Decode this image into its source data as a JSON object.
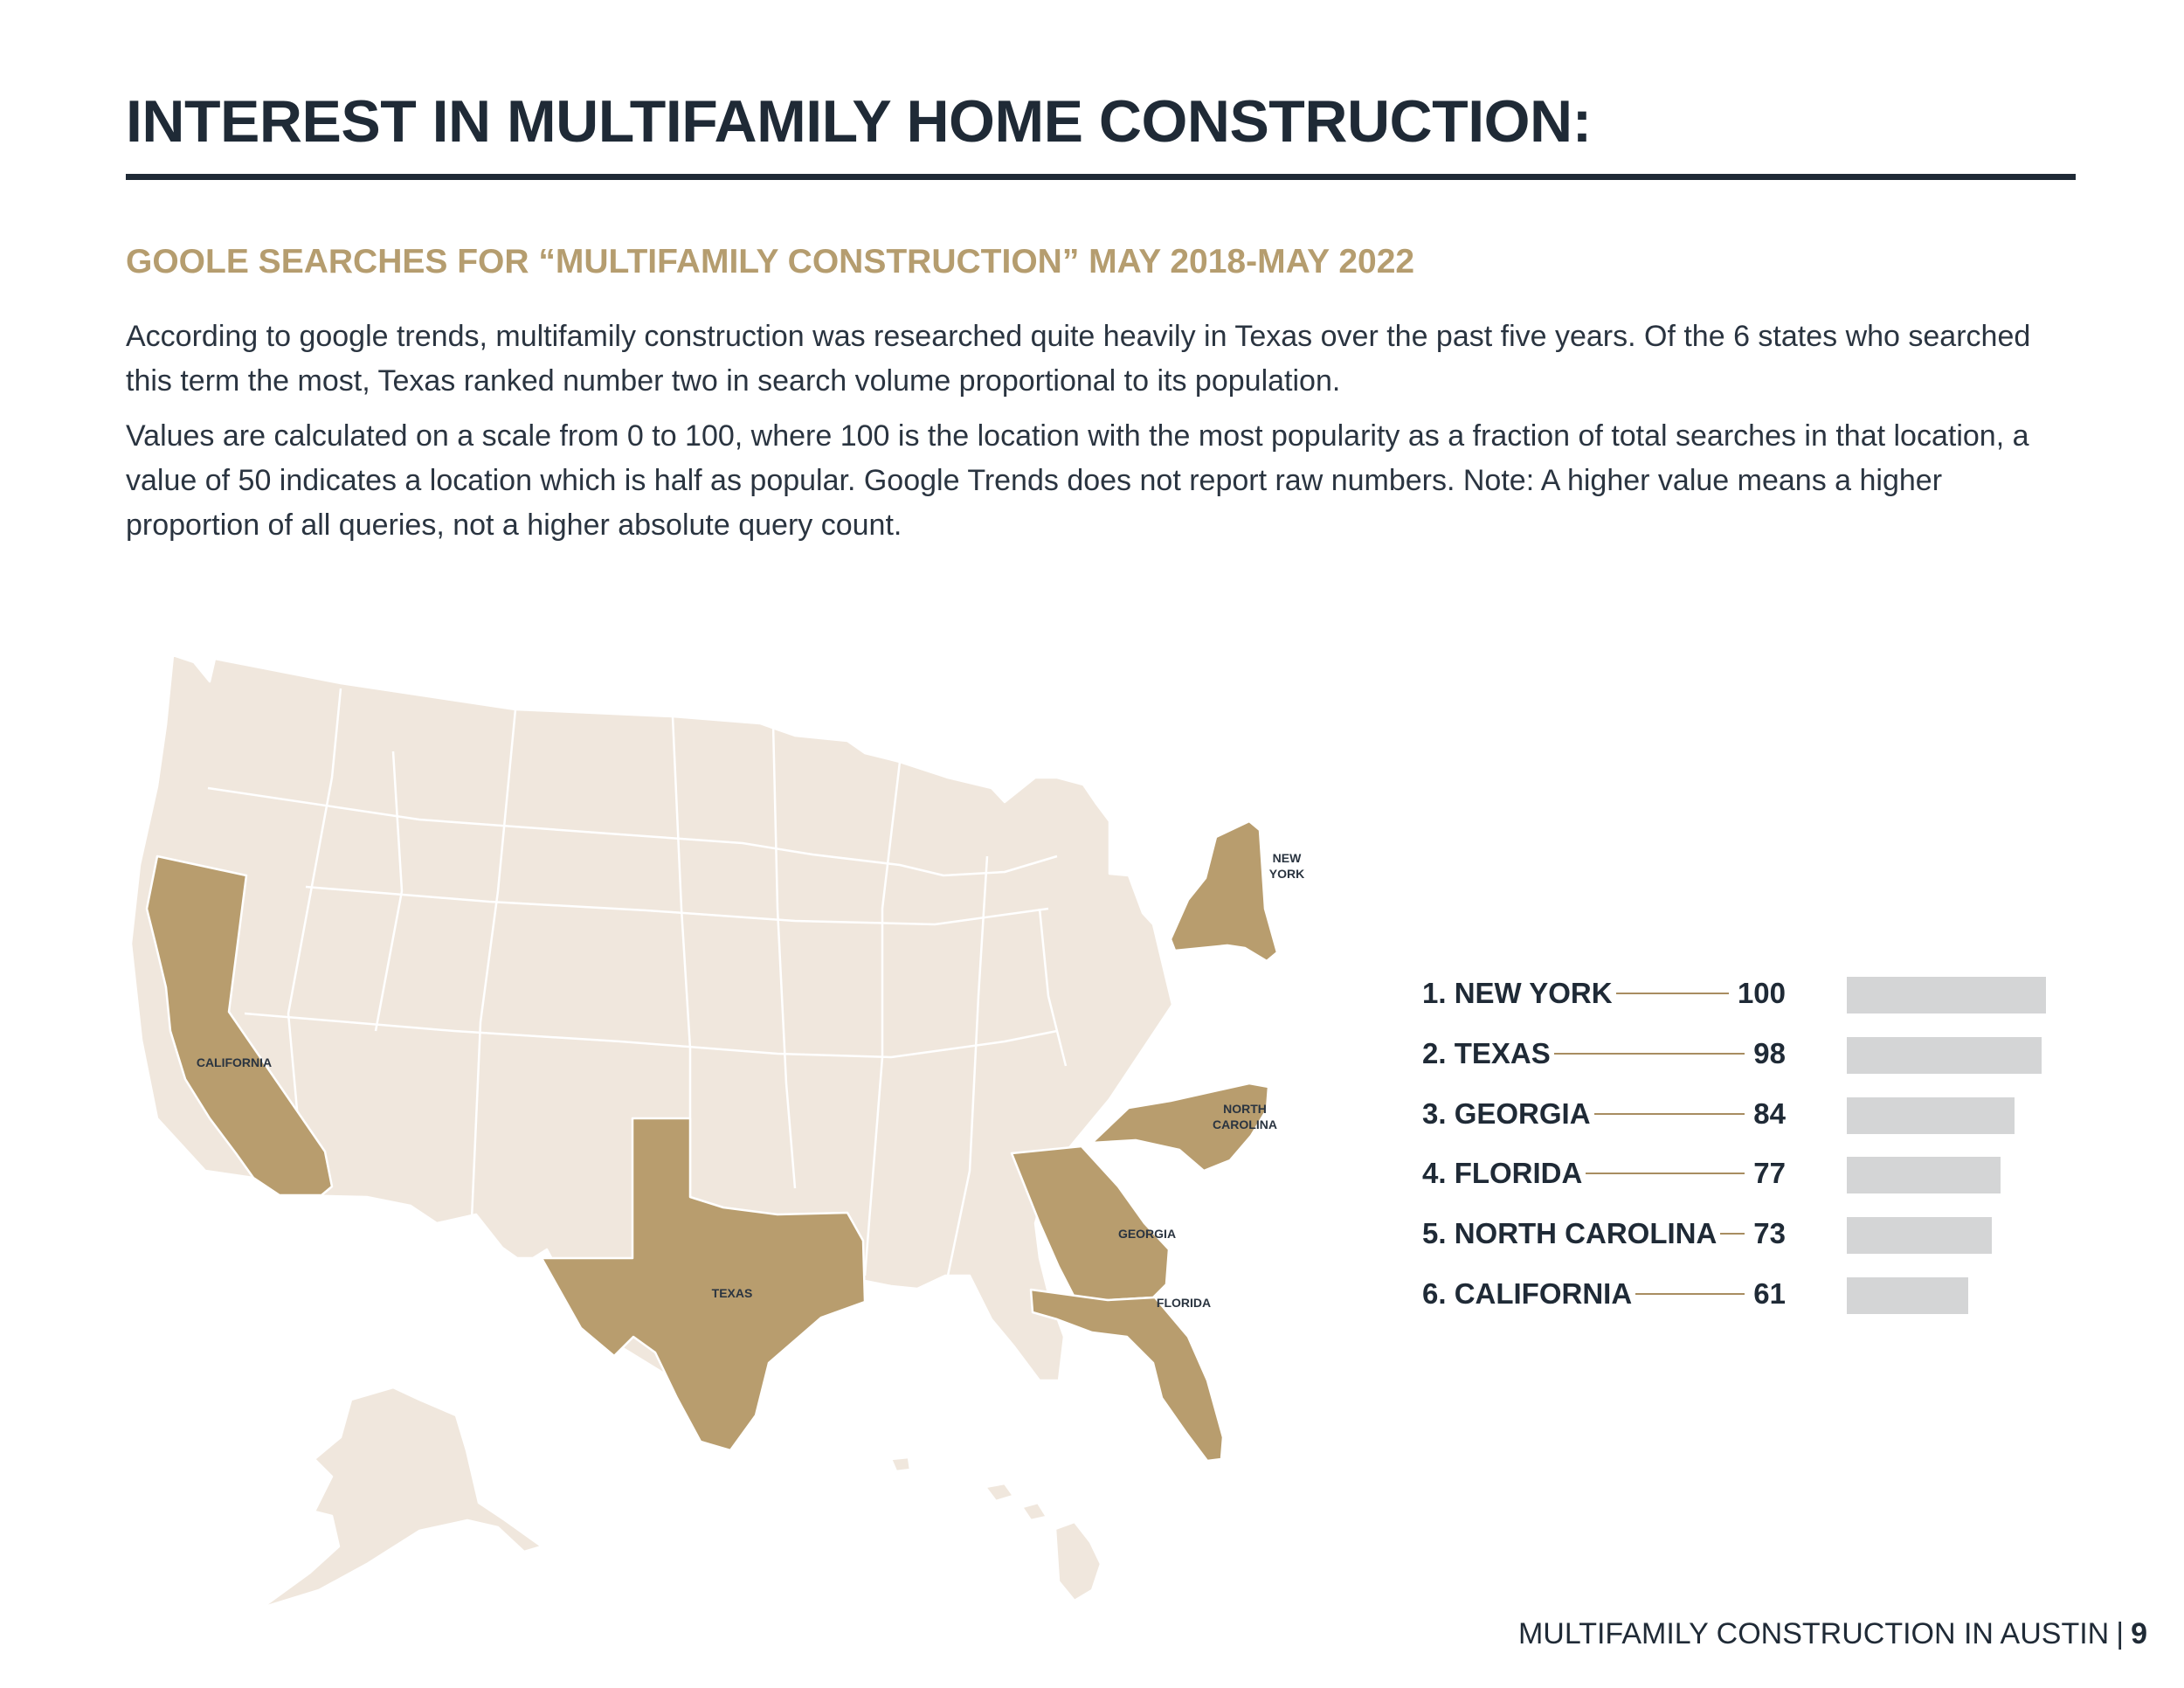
{
  "header": {
    "title": "INTEREST IN MULTIFAMILY HOME CONSTRUCTION:",
    "subtitle": "GOOLE SEARCHES FOR “MULTIFAMILY CONSTRUCTION” MAY 2018-MAY 2022"
  },
  "body": {
    "paragraph_1": "According to google trends, multifamily construction was researched quite heavily in Texas over the past five years. Of the 6 states who searched this term the most, Texas ranked number two in search volume proportional to its population.",
    "paragraph_2": "Values are calculated on a scale from 0 to 100, where 100 is the location with the most popularity as a fraction of total searches in that location, a value of 50 indicates a location which is half as popular. Google Trends does not report raw numbers. Note: A higher value means a higher proportion of all queries, not a higher absolute query count."
  },
  "map": {
    "labels": {
      "california": "CALIFORNIA",
      "texas": "TEXAS",
      "georgia": "GEORGIA",
      "florida": "FLORIDA",
      "north_carolina_1": "NORTH",
      "north_carolina_2": "CAROLINA",
      "new_york_1": "NEW",
      "new_york_2": "YORK"
    },
    "colors": {
      "land": "#f0e7dd",
      "highlight": "#b89d6e",
      "border": "#ffffff"
    }
  },
  "chart_data": {
    "type": "bar",
    "orientation": "horizontal",
    "categories": [
      "1. NEW YORK",
      "2. TEXAS",
      "3. GEORGIA",
      "4. FLORIDA",
      "5. NORTH CAROLINA",
      "6. CALIFORNIA"
    ],
    "values": [
      100,
      98,
      84,
      77,
      73,
      61
    ],
    "xlim": [
      0,
      100
    ],
    "bar_color": "#d4d5d6",
    "leader_color": "#a88d61"
  },
  "footer": {
    "text": "MULTIFAMILY CONSTRUCTION IN AUSTIN",
    "separator": "|",
    "page_number": "9"
  }
}
